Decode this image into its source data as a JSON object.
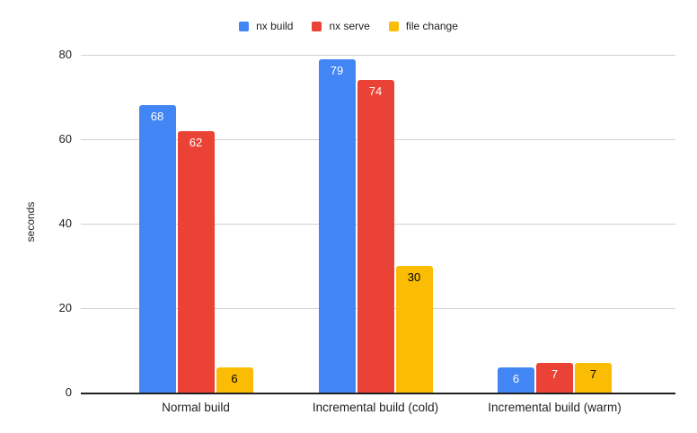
{
  "chart_data": {
    "type": "bar",
    "title": "",
    "categories": [
      "Normal build",
      "Incremental build (cold)",
      "Incremental build (warm)"
    ],
    "series": [
      {
        "name": "nx build",
        "color": "#4285F4",
        "label_color": "#ffffff",
        "values": [
          68,
          79,
          6
        ]
      },
      {
        "name": "nx serve",
        "color": "#EA4335",
        "label_color": "#ffffff",
        "values": [
          62,
          74,
          7
        ]
      },
      {
        "name": "file change",
        "color": "#FBBC04",
        "label_color": "#000000",
        "values": [
          6,
          30,
          7
        ]
      }
    ],
    "xlabel": "",
    "ylabel": "seconds",
    "ylim": [
      0,
      80
    ],
    "yticks": [
      0,
      20,
      40,
      60,
      80
    ],
    "grid": true,
    "legend_position": "top",
    "gridline_color": "#d2d2d2",
    "axis_line_color": "#212121",
    "text_color": "#1f1f1f",
    "background_color": "#ffffff"
  }
}
